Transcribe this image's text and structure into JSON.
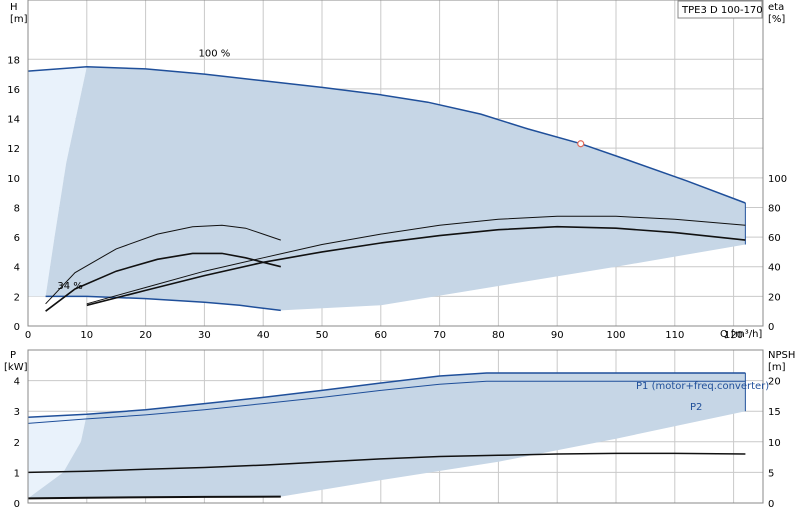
{
  "title": "TPE3 D 100-170",
  "colors": {
    "curve": "#1f4f9a",
    "area": "#c6d6e6",
    "area_light": "#e9f2fb",
    "grid": "#c9c9c9",
    "efficiency": "#111111",
    "operating_point": "#e06a5a"
  },
  "chart_data": [
    {
      "type": "line",
      "panel": "head-efficiency",
      "xlabel": "Q [m³/h]",
      "ylabel_left": "H\n[m]",
      "ylabel_right": "eta\n[%]",
      "xlim": [
        0,
        125
      ],
      "ylim": [
        0,
        22
      ],
      "y2lim": [
        0,
        220
      ],
      "x_ticks": [
        0,
        10,
        20,
        30,
        40,
        50,
        60,
        70,
        80,
        90,
        100,
        110,
        120
      ],
      "y_ticks": [
        0,
        2,
        4,
        6,
        8,
        10,
        12,
        14,
        16,
        18
      ],
      "y2_ticks": [
        0,
        20,
        40,
        60,
        80,
        100
      ],
      "grid": true,
      "annotations": [
        {
          "text": "100 %",
          "x": 29,
          "y": 18.2
        },
        {
          "text": "34 %",
          "x": 5,
          "y": 2.5
        }
      ],
      "operating_point": {
        "x": 94,
        "y": 12.3
      },
      "series": [
        {
          "name": "100 %",
          "role": "max_head",
          "x": [
            0,
            10,
            20,
            30,
            40,
            50,
            60,
            68,
            77,
            85,
            94,
            102,
            112,
            122
          ],
          "y": [
            17.2,
            17.5,
            17.35,
            17.0,
            16.55,
            16.1,
            15.6,
            15.1,
            14.3,
            13.3,
            12.3,
            11.2,
            9.8,
            8.3
          ]
        },
        {
          "name": "34 %",
          "role": "min_head",
          "x": [
            3,
            10,
            20,
            30,
            36,
            43
          ],
          "y": [
            2.0,
            2.0,
            1.85,
            1.6,
            1.4,
            1.05
          ]
        },
        {
          "role": "max_efficiency_upper",
          "x": [
            10,
            20,
            30,
            40,
            50,
            60,
            70,
            80,
            90,
            100,
            110,
            122
          ],
          "y2": [
            15,
            26,
            37,
            46,
            55,
            62,
            68,
            72,
            74,
            74,
            72,
            68
          ]
        },
        {
          "role": "max_efficiency",
          "x": [
            10,
            20,
            30,
            40,
            50,
            60,
            70,
            80,
            90,
            100,
            110,
            122
          ],
          "y2": [
            14,
            24,
            34,
            43,
            50,
            56,
            61,
            65,
            67,
            66,
            63,
            58
          ]
        },
        {
          "role": "min_efficiency_upper",
          "x": [
            3,
            8,
            15,
            22,
            28,
            33,
            37,
            40,
            43
          ],
          "y2": [
            15,
            36,
            52,
            62,
            67,
            68,
            66,
            62,
            58
          ]
        },
        {
          "role": "min_efficiency",
          "x": [
            3,
            8,
            15,
            22,
            28,
            33,
            37,
            40,
            43
          ],
          "y2": [
            10,
            25,
            37,
            45,
            49,
            49,
            46,
            43,
            40
          ]
        }
      ]
    },
    {
      "type": "line",
      "panel": "power-npsh",
      "xlabel": "",
      "ylabel_left": "P\n[kW]",
      "ylabel_right": "NPSH\n[m]",
      "xlim": [
        0,
        125
      ],
      "ylim": [
        0,
        5
      ],
      "y2lim": [
        0,
        25
      ],
      "y_ticks": [
        0,
        1,
        2,
        3,
        4
      ],
      "y2_ticks": [
        0,
        5,
        10,
        15,
        20
      ],
      "grid": true,
      "legend_labels": [
        "P1 (motor+freq.converter)",
        "P2"
      ],
      "series": [
        {
          "name": "P1 (motor+freq.converter)",
          "x": [
            0,
            10,
            20,
            30,
            40,
            50,
            60,
            70,
            78,
            90,
            100,
            110,
            122
          ],
          "y": [
            2.8,
            2.9,
            3.05,
            3.25,
            3.45,
            3.68,
            3.92,
            4.15,
            4.25,
            4.25,
            4.25,
            4.25,
            4.25
          ]
        },
        {
          "name": "P2",
          "x": [
            0,
            10,
            20,
            30,
            40,
            50,
            60,
            70,
            78,
            90,
            100,
            110,
            122
          ],
          "y": [
            2.6,
            2.75,
            2.88,
            3.05,
            3.25,
            3.45,
            3.68,
            3.88,
            3.98,
            3.98,
            3.98,
            3.98,
            3.98
          ]
        },
        {
          "role": "npsh",
          "x": [
            0,
            10,
            20,
            30,
            40,
            50,
            60,
            70,
            80,
            90,
            100,
            110,
            122
          ],
          "y2": [
            5.0,
            5.2,
            5.5,
            5.8,
            6.2,
            6.7,
            7.2,
            7.6,
            7.8,
            8.0,
            8.1,
            8.1,
            8.0
          ]
        },
        {
          "role": "min_power",
          "x": [
            0,
            10,
            20,
            30,
            43
          ],
          "y": [
            0.15,
            0.17,
            0.19,
            0.2,
            0.21
          ]
        }
      ]
    }
  ]
}
